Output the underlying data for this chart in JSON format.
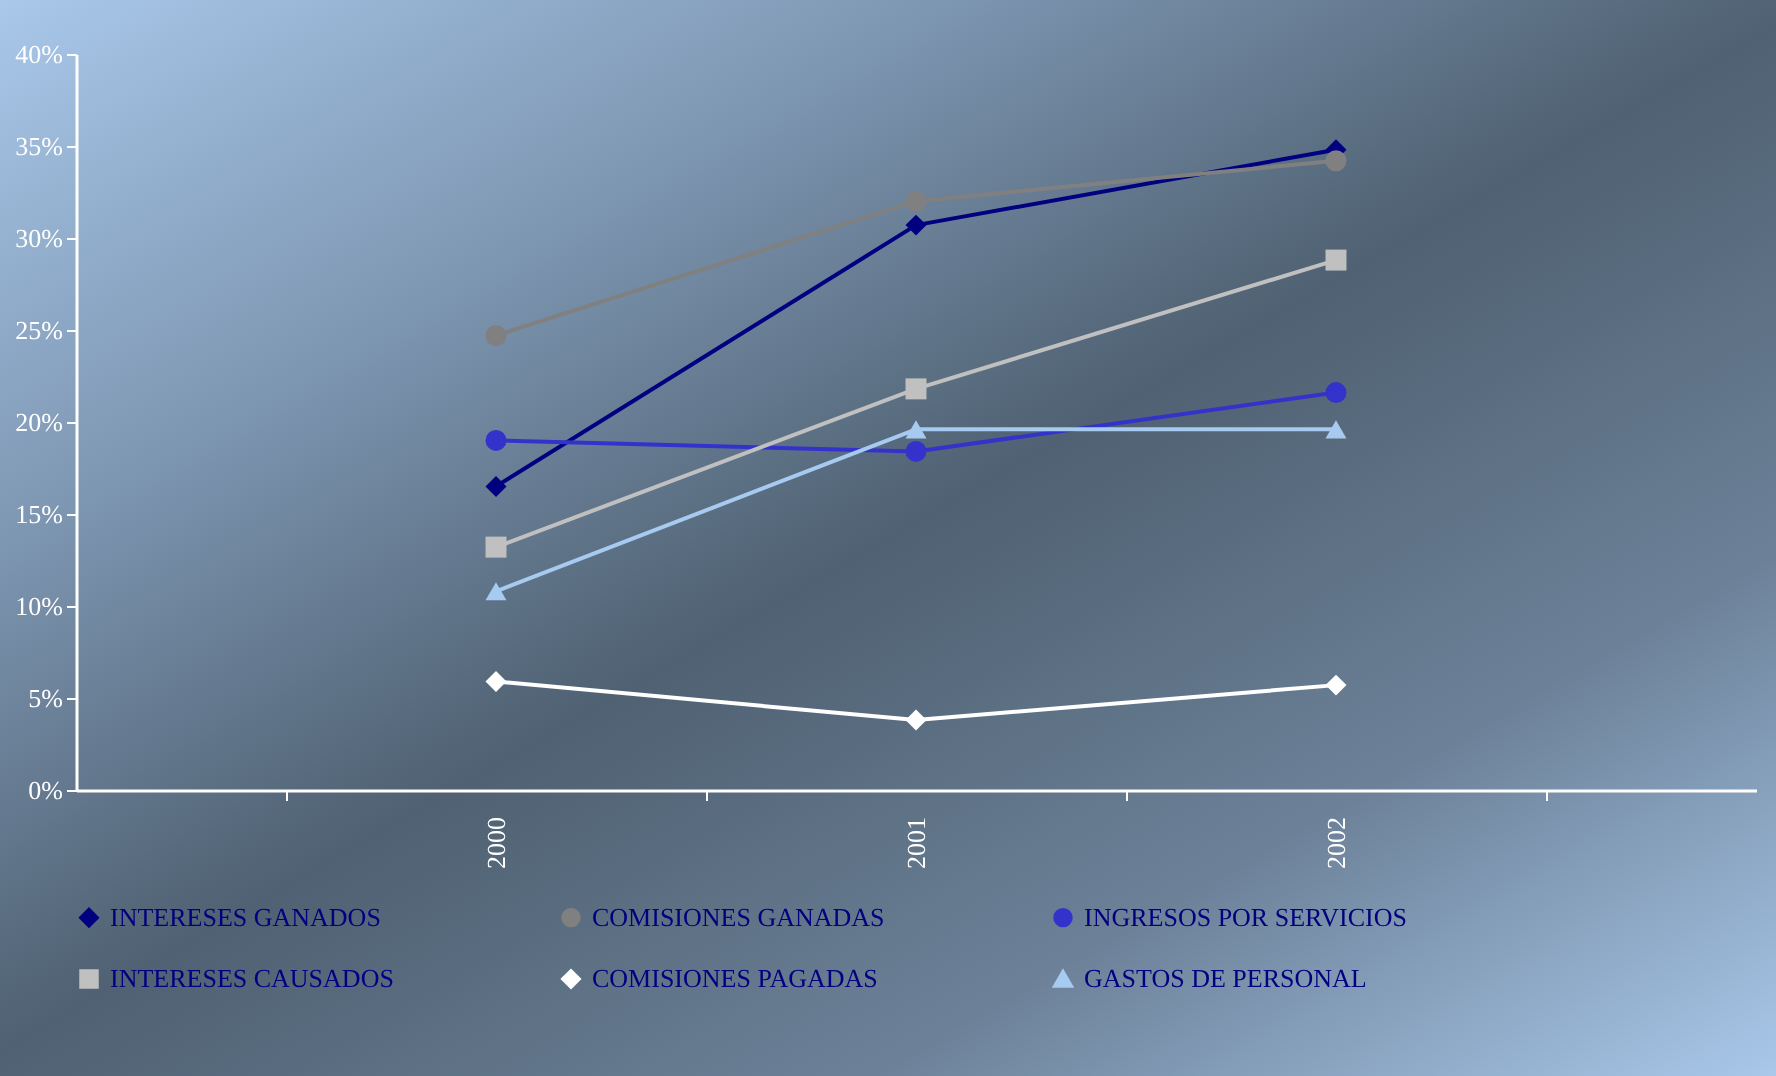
{
  "chart_data": {
    "type": "line",
    "categories": [
      "2000",
      "2001",
      "2002"
    ],
    "series": [
      {
        "name": "INTERESES GANADOS",
        "color": "#000080",
        "marker": "diamond",
        "values": [
          16.5,
          30.7,
          34.8
        ]
      },
      {
        "name": "COMISIONES GANADAS",
        "color": "#808080",
        "marker": "circle",
        "values": [
          24.7,
          32.0,
          34.2
        ]
      },
      {
        "name": "INGRESOS POR SERVICIOS",
        "color": "#3333cc",
        "marker": "circle",
        "values": [
          19.0,
          18.4,
          21.6
        ]
      },
      {
        "name": "INTERESES CAUSADOS",
        "color": "#c0c0c0",
        "marker": "square",
        "values": [
          13.2,
          21.8,
          28.8
        ]
      },
      {
        "name": "COMISIONES PAGADAS",
        "color": "#ffffff",
        "marker": "diamond",
        "values": [
          5.9,
          3.8,
          5.7
        ]
      },
      {
        "name": "GASTOS DE PERSONAL",
        "color": "#a6caf0",
        "marker": "triangle",
        "values": [
          10.8,
          19.6,
          19.6
        ]
      }
    ],
    "ylim": [
      0,
      40
    ],
    "yticks": [
      {
        "value": 0,
        "label": "0%"
      },
      {
        "value": 5,
        "label": "5%"
      },
      {
        "value": 10,
        "label": "10%"
      },
      {
        "value": 15,
        "label": "15%"
      },
      {
        "value": 20,
        "label": "20%"
      },
      {
        "value": 25,
        "label": "25%"
      },
      {
        "value": 30,
        "label": "30%"
      },
      {
        "value": 35,
        "label": "35%"
      },
      {
        "value": 40,
        "label": "40%"
      }
    ],
    "grid": false,
    "legend": "bottom",
    "line_style": "solid"
  }
}
